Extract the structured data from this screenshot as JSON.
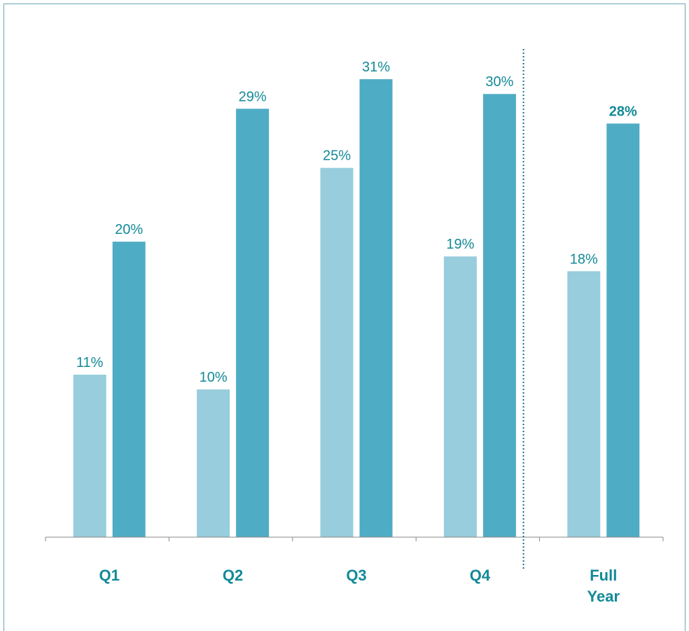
{
  "colors": {
    "light_bar": "#97cddc",
    "dark_bar": "#4facc5",
    "label_text": "#138a97",
    "axis": "#888888",
    "divider": "#1b6f86"
  },
  "chart_data": {
    "type": "bar",
    "categories": [
      [
        "Q1"
      ],
      [
        "Q2"
      ],
      [
        "Q3"
      ],
      [
        "Q4"
      ],
      [
        "Full",
        "Year"
      ]
    ],
    "series": [
      {
        "values": [
          11,
          10,
          25,
          19,
          18
        ],
        "labels": [
          "11%",
          "10%",
          "25%",
          "19%",
          "18%"
        ]
      },
      {
        "values": [
          20,
          29,
          31,
          30,
          28
        ],
        "labels": [
          "20%",
          "29%",
          "31%",
          "30%",
          "28%"
        ]
      }
    ],
    "bold_labels": [
      "28%"
    ],
    "ylim": [
      0,
      32
    ],
    "grid": false,
    "legend": "none",
    "divider_before_category": "Full Year"
  }
}
